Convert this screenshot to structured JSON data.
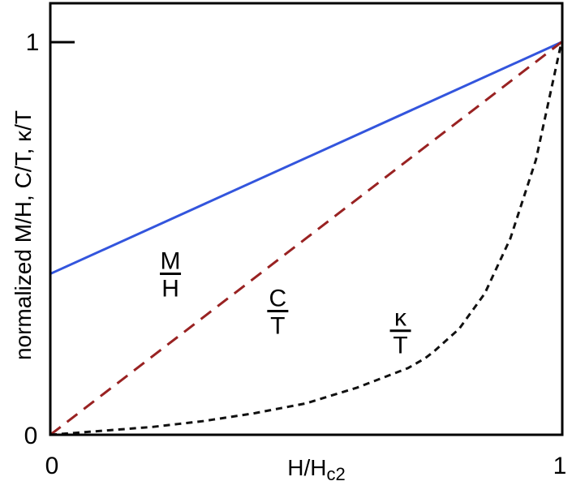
{
  "chart_data": {
    "type": "line",
    "title": "",
    "xlabel": "H/H",
    "xlabel_sub": "c2",
    "ylabel": "normalized M/H, C/T, κ/T",
    "xlim": [
      0,
      1
    ],
    "ylim": [
      0,
      1
    ],
    "grid": false,
    "x_ticks": [
      {
        "value": 0,
        "label": "0"
      },
      {
        "value": 1,
        "label": "1"
      }
    ],
    "y_ticks": [
      {
        "value": 0,
        "label": "0"
      },
      {
        "value": 1,
        "label": "1"
      }
    ],
    "series": [
      {
        "key": "mh",
        "color": "#3355dd",
        "style": "solid",
        "x": [
          0,
          1
        ],
        "y": [
          0.41,
          1.0
        ]
      },
      {
        "key": "ct",
        "color": "#992222",
        "style": "dashed",
        "x": [
          0,
          1
        ],
        "y": [
          0,
          1.0
        ]
      },
      {
        "key": "kt",
        "color": "#111111",
        "style": "dotted",
        "x": [
          0,
          0.1,
          0.2,
          0.3,
          0.4,
          0.5,
          0.6,
          0.7,
          0.74,
          0.8,
          0.85,
          0.9,
          0.95,
          1.0
        ],
        "y": [
          0,
          0.01,
          0.02,
          0.035,
          0.055,
          0.08,
          0.12,
          0.17,
          0.2,
          0.27,
          0.36,
          0.5,
          0.7,
          1.0
        ]
      }
    ],
    "annotations": [
      {
        "key": "mh",
        "numerator": "M",
        "denominator": "H",
        "x": 0.235,
        "y": 0.41
      },
      {
        "key": "ct",
        "numerator": "C",
        "denominator": "T",
        "x": 0.445,
        "y": 0.315
      },
      {
        "key": "kt",
        "numerator": "κ",
        "denominator": "T",
        "x": 0.685,
        "y": 0.265
      }
    ]
  }
}
